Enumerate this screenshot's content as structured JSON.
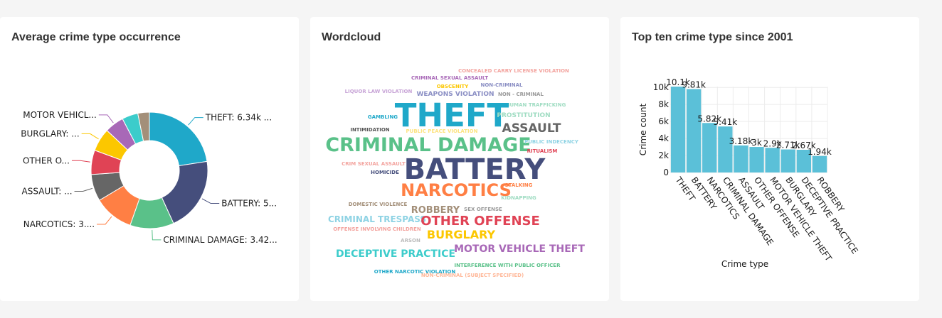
{
  "colors": {
    "background": "#f5f5f5",
    "card": "#ffffff",
    "title": "#323232",
    "bar": "#5bc0d8"
  },
  "cards": {
    "pie_title": "Average crime type occurrence",
    "wordcloud_title": "Wordcloud",
    "bar_title": "Top ten crime type since 2001"
  },
  "chart_data": [
    {
      "type": "pie",
      "title": "Average crime type occurrence",
      "donut": true,
      "start_angle_deg": 0,
      "slices": [
        {
          "label": "THEFT: 6.34k ...",
          "value": 6340,
          "color": "#1fa8c9"
        },
        {
          "label": "BATTERY: 5...",
          "value": 5810,
          "color": "#454e7c"
        },
        {
          "label": "CRIMINAL DAMAGE: 3.42...",
          "value": 3420,
          "color": "#5ac189"
        },
        {
          "label": "NARCOTICS: 3....",
          "value": 3100,
          "color": "#ff7f44"
        },
        {
          "label": "ASSAULT: ...",
          "value": 2100,
          "color": "#666666"
        },
        {
          "label": "OTHER O...",
          "value": 1900,
          "color": "#e04355"
        },
        {
          "label": "BURGLARY: ...",
          "value": 1800,
          "color": "#fcc700"
        },
        {
          "label": "MOTOR VEHICL...",
          "value": 1500,
          "color": "#a868b7"
        },
        {
          "label": "",
          "value": 1250,
          "color": "#3ccccb"
        },
        {
          "label": "",
          "value": 900,
          "color": "#a38f79"
        }
      ]
    },
    {
      "type": "wordcloud",
      "title": "Wordcloud",
      "words": [
        {
          "text": "CONCEALED CARRY LICENSE VIOLATION",
          "color": "#f3a49f",
          "size": 7,
          "weight": 600
        },
        {
          "text": "CRIMINAL SEXUAL ASSAULT",
          "color": "#a868b7",
          "size": 7,
          "weight": 700
        },
        {
          "text": "NON-CRIMINAL",
          "color": "#8b8fc4",
          "size": 7,
          "weight": 600
        },
        {
          "text": "OBSCENITY",
          "color": "#fcc700",
          "size": 7,
          "weight": 700
        },
        {
          "text": "LIQUOR LAW VIOLATION",
          "color": "#c7a3d6",
          "size": 7,
          "weight": 600
        },
        {
          "text": "WEAPONS VIOLATION",
          "color": "#8b8fc4",
          "size": 9,
          "weight": 700
        },
        {
          "text": "NON - CRIMINAL",
          "color": "#999999",
          "size": 7,
          "weight": 600
        },
        {
          "text": "HUMAN TRAFFICKING",
          "color": "#9fdcc2",
          "size": 7,
          "weight": 600
        },
        {
          "text": "THEFT",
          "color": "#1fa8c9",
          "size": 45,
          "weight": 700
        },
        {
          "text": "PROSTITUTION",
          "color": "#9fdcc2",
          "size": 9,
          "weight": 600
        },
        {
          "text": "GAMBLING",
          "color": "#1fa8c9",
          "size": 7,
          "weight": 700
        },
        {
          "text": "ASSAULT",
          "color": "#666666",
          "size": 17,
          "weight": 700
        },
        {
          "text": "INTIMIDATION",
          "color": "#555555",
          "size": 7,
          "weight": 600
        },
        {
          "text": "PUBLIC PEACE VIOLATION",
          "color": "#fde380",
          "size": 7,
          "weight": 600
        },
        {
          "text": "CRIMINAL DAMAGE",
          "color": "#5ac189",
          "size": 27,
          "weight": 700
        },
        {
          "text": "PUBLIC INDECENCY",
          "color": "#8fd3e4",
          "size": 7,
          "weight": 600
        },
        {
          "text": "RITUALISM",
          "color": "#e04355",
          "size": 7,
          "weight": 600
        },
        {
          "text": "CRIM SEXUAL ASSAULT",
          "color": "#f3a49f",
          "size": 7,
          "weight": 600
        },
        {
          "text": "BATTERY",
          "color": "#454e7c",
          "size": 40,
          "weight": 700
        },
        {
          "text": "HOMICIDE",
          "color": "#454e7c",
          "size": 7,
          "weight": 700
        },
        {
          "text": "NARCOTICS",
          "color": "#ff7f44",
          "size": 24,
          "weight": 700
        },
        {
          "text": "STALKING",
          "color": "#ff7f44",
          "size": 7,
          "weight": 700
        },
        {
          "text": "KIDNAPPING",
          "color": "#9fdcc2",
          "size": 7,
          "weight": 600
        },
        {
          "text": "DOMESTIC VIOLENCE",
          "color": "#a38f79",
          "size": 7,
          "weight": 600
        },
        {
          "text": "ROBBERY",
          "color": "#a38f79",
          "size": 13,
          "weight": 700
        },
        {
          "text": "SEX OFFENSE",
          "color": "#999999",
          "size": 7,
          "weight": 600
        },
        {
          "text": "CRIMINAL TRESPASS",
          "color": "#8fd3e4",
          "size": 12,
          "weight": 700
        },
        {
          "text": "OTHER OFFENSE",
          "color": "#e04355",
          "size": 18,
          "weight": 700
        },
        {
          "text": "OFFENSE INVOLVING CHILDREN",
          "color": "#f3a49f",
          "size": 7,
          "weight": 600
        },
        {
          "text": "BURGLARY",
          "color": "#fcc700",
          "size": 16,
          "weight": 700
        },
        {
          "text": "ARSON",
          "color": "#bbbbbb",
          "size": 7,
          "weight": 600
        },
        {
          "text": "DECEPTIVE PRACTICE",
          "color": "#3ccccb",
          "size": 14,
          "weight": 700
        },
        {
          "text": "MOTOR VEHICLE THEFT",
          "color": "#a868b7",
          "size": 14,
          "weight": 700
        },
        {
          "text": "INTERFERENCE WITH PUBLIC OFFICER",
          "color": "#5ac189",
          "size": 7,
          "weight": 600
        },
        {
          "text": "OTHER NARCOTIC VIOLATION",
          "color": "#1fa8c9",
          "size": 7,
          "weight": 600
        },
        {
          "text": "NON-CRIMINAL (SUBJECT SPECIFIED)",
          "color": "#ffb899",
          "size": 7,
          "weight": 600
        }
      ]
    },
    {
      "type": "bar",
      "title": "Top ten crime type since 2001",
      "xlabel": "Crime type",
      "ylabel": "Crime count",
      "ylim": [
        0,
        10100
      ],
      "yticks": [
        0,
        2000,
        4000,
        6000,
        8000,
        10000
      ],
      "ytick_labels": [
        "0",
        "2k",
        "4k",
        "6k",
        "8k",
        "10k"
      ],
      "grid": true,
      "categories": [
        "THEFT",
        "BATTERY",
        "NARCOTICS",
        "CRIMINAL DAMAGE",
        "ASSAULT",
        "OTHER OFFENSE",
        "MOTOR VEHICLE THEFT",
        "BURGLARY",
        "DECEPTIVE PRACTICE",
        "ROBBERY"
      ],
      "values": [
        10100,
        9810,
        5820,
        5410,
        3180,
        3000,
        2900,
        2710,
        2670,
        1940
      ],
      "value_labels": [
        "10.1k",
        "9.81k",
        "5.82k",
        "5.41k",
        "3.18k",
        "3k",
        "2.9k",
        "2.71k",
        "2.67k",
        "1.94k"
      ],
      "color": "#5bc0d8"
    }
  ]
}
